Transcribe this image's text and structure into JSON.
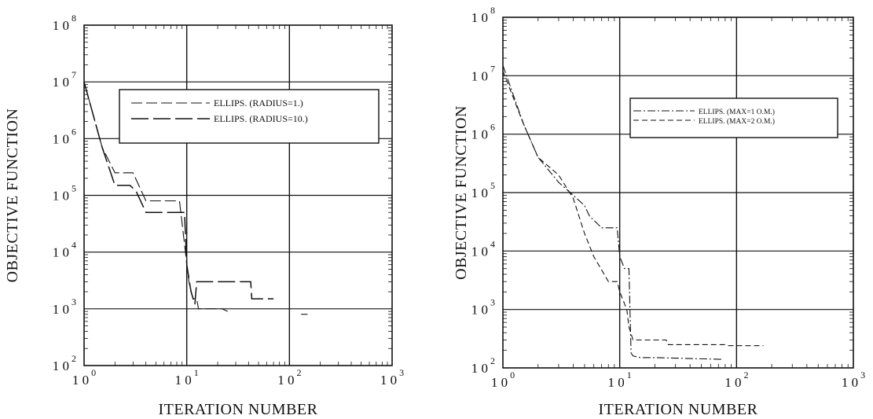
{
  "chart_data": [
    {
      "type": "line",
      "xlabel": "ITERATION NUMBER",
      "ylabel": "OBJECTIVE FUNCTION",
      "x_scale": "log",
      "y_scale": "log",
      "xlim": [
        1,
        1000
      ],
      "ylim": [
        100,
        100000000
      ],
      "grid": true,
      "legend_position": "top-right",
      "x_ticks": [
        {
          "base": "10",
          "exp": "0"
        },
        {
          "base": "10",
          "exp": "1"
        },
        {
          "base": "10",
          "exp": "2"
        },
        {
          "base": "10",
          "exp": "3"
        }
      ],
      "y_ticks": [
        {
          "base": "10",
          "exp": "2"
        },
        {
          "base": "10",
          "exp": "3"
        },
        {
          "base": "10",
          "exp": "4"
        },
        {
          "base": "10",
          "exp": "5"
        },
        {
          "base": "10",
          "exp": "6"
        },
        {
          "base": "10",
          "exp": "7"
        },
        {
          "base": "10",
          "exp": "8"
        }
      ],
      "series": [
        {
          "name": "ELLIPS. (RADIUS=1.)",
          "style": "long-dash",
          "x": [
            1,
            1.5,
            2,
            3,
            4,
            8.5,
            10.5,
            11.5,
            12.5,
            13,
            22,
            25
          ],
          "y": [
            10000000,
            700000,
            250000,
            250000,
            80000,
            80000,
            3000,
            1500,
            1500,
            1000,
            1000,
            900
          ]
        },
        {
          "name": "ELLIPS. (RADIUS=10.)",
          "style": "long-dash-heavy",
          "x": [
            1,
            1.5,
            2,
            2.8,
            3.2,
            4,
            9.5,
            10,
            11,
            12,
            12.5,
            13,
            42,
            43,
            70
          ],
          "y": [
            10000000,
            700000,
            150000,
            150000,
            120000,
            50000,
            50000,
            6000,
            2000,
            1200,
            3000,
            3000,
            3000,
            1500,
            1500
          ]
        }
      ],
      "extra_segment": {
        "x": [
          130,
          150
        ],
        "y": [
          800,
          800
        ]
      }
    },
    {
      "type": "line",
      "xlabel": "ITERATION NUMBER",
      "ylabel": "OBJECTIVE FUNCTION",
      "x_scale": "log",
      "y_scale": "log",
      "xlim": [
        1,
        1000
      ],
      "ylim": [
        100,
        100000000
      ],
      "grid": true,
      "legend_position": "top-right",
      "x_ticks": [
        {
          "base": "10",
          "exp": "0"
        },
        {
          "base": "10",
          "exp": "1"
        },
        {
          "base": "10",
          "exp": "2"
        },
        {
          "base": "10",
          "exp": "3"
        }
      ],
      "y_ticks": [
        {
          "base": "10",
          "exp": "2"
        },
        {
          "base": "10",
          "exp": "3"
        },
        {
          "base": "10",
          "exp": "4"
        },
        {
          "base": "10",
          "exp": "5"
        },
        {
          "base": "10",
          "exp": "6"
        },
        {
          "base": "10",
          "exp": "7"
        },
        {
          "base": "10",
          "exp": "8"
        }
      ],
      "series": [
        {
          "name": "ELLIPS. (MAX=1 O.M.)",
          "style": "dash-dot",
          "x": [
            1,
            1.5,
            2,
            3,
            4,
            5,
            5.5,
            7,
            9.5,
            10,
            11,
            12,
            12.5,
            13,
            15,
            20,
            74
          ],
          "y": [
            15000000,
            1500000,
            400000,
            150000,
            90000,
            60000,
            40000,
            25000,
            25000,
            8000,
            5000,
            5000,
            180,
            160,
            150,
            150,
            140
          ]
        },
        {
          "name": "ELLIPS. (MAX=2 O.M.)",
          "style": "dash",
          "x": [
            1,
            1.5,
            2,
            3,
            4,
            5,
            6,
            8,
            9.5,
            10,
            11.5,
            12,
            13,
            25,
            26,
            80,
            85,
            170
          ],
          "y": [
            12000000,
            1500000,
            400000,
            200000,
            80000,
            20000,
            8000,
            3000,
            3000,
            2000,
            1000,
            500,
            300,
            300,
            250,
            250,
            240,
            240
          ]
        }
      ]
    }
  ]
}
